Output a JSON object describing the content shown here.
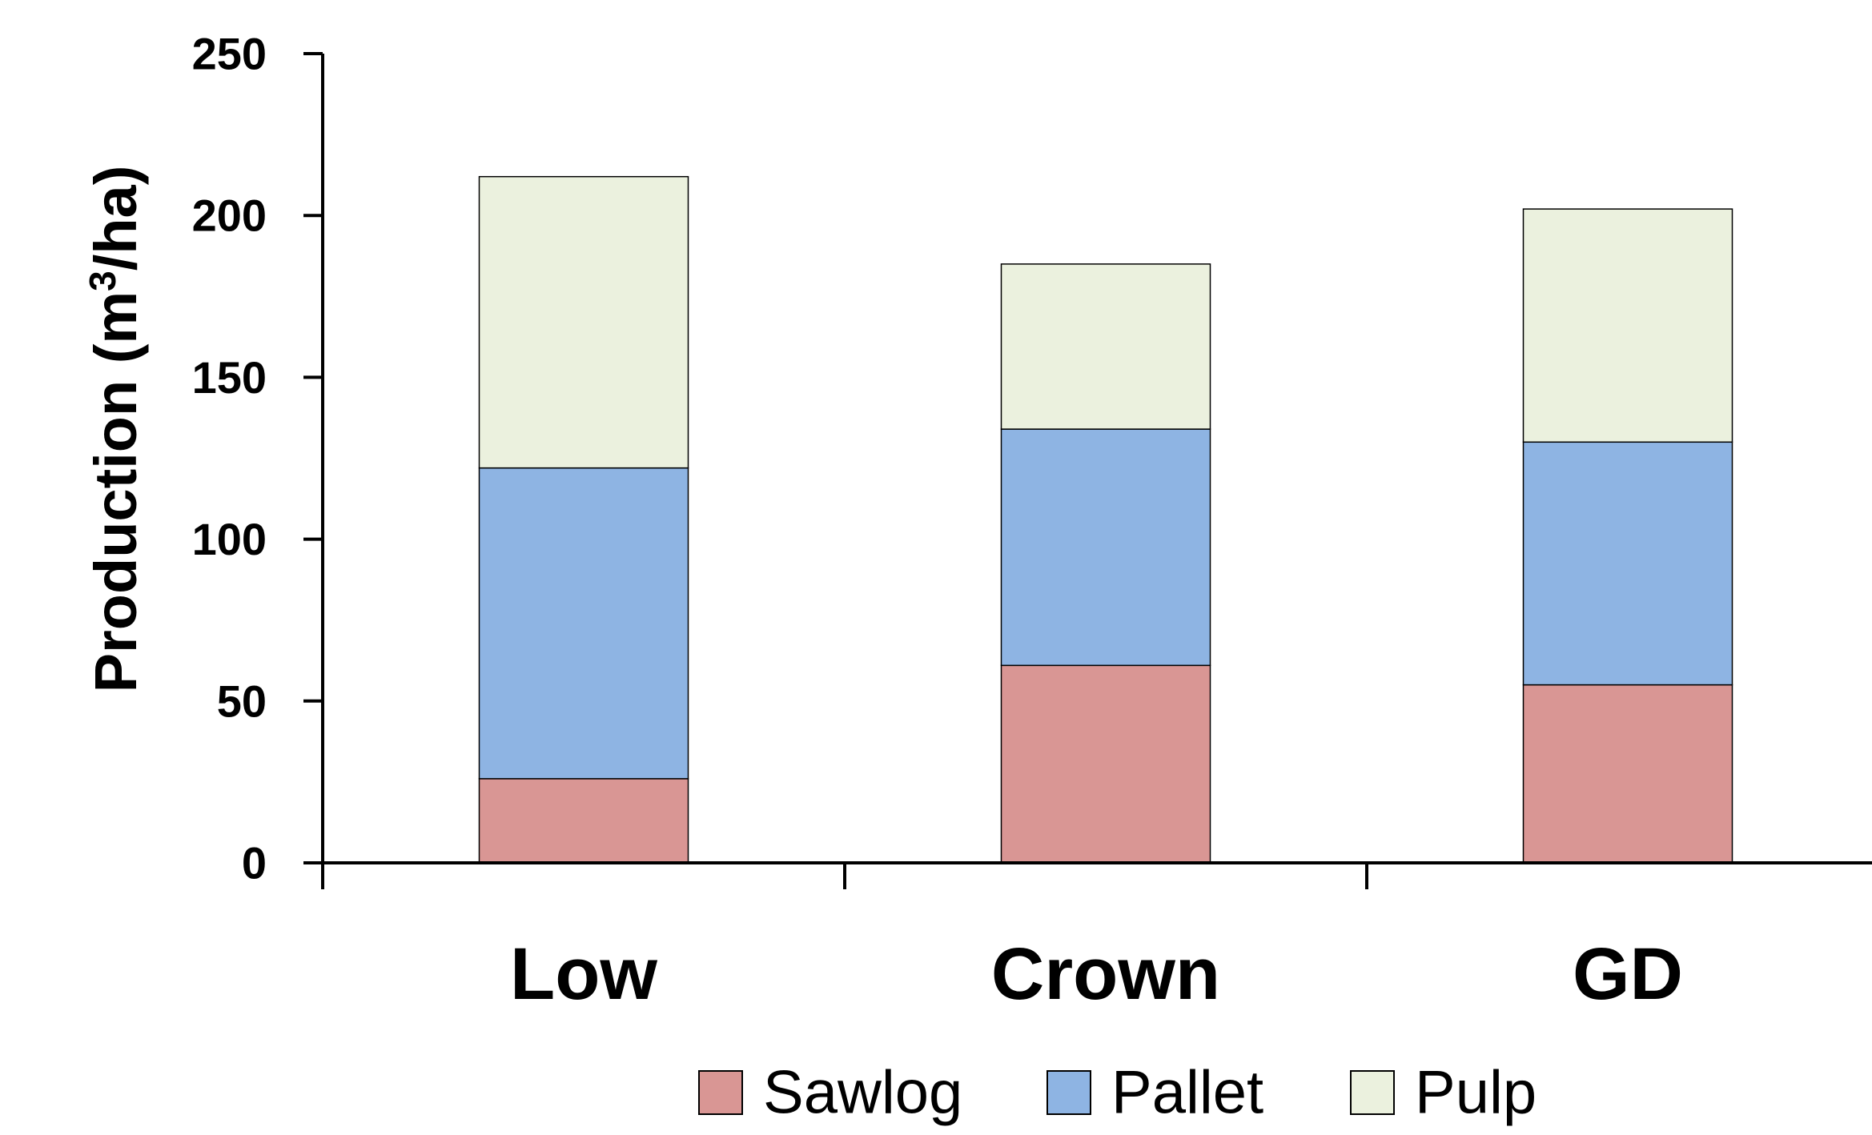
{
  "chart_data": {
    "type": "bar",
    "stacked": true,
    "categories": [
      "Low",
      "Crown",
      "GD"
    ],
    "series": [
      {
        "name": "Sawlog",
        "values": [
          26,
          61,
          55
        ],
        "color": "#d99694"
      },
      {
        "name": "Pallet",
        "values": [
          96,
          73,
          75
        ],
        "color": "#8eb4e3"
      },
      {
        "name": "Pulp",
        "values": [
          90,
          51,
          72
        ],
        "color": "#ebf1de"
      }
    ],
    "ylabel_main": "Production (m",
    "ylabel_superscript": "3",
    "ylabel_tail": "/ha)",
    "xlabel": "",
    "title": "",
    "ylim": [
      0,
      250
    ],
    "yticks": [
      "0",
      "50",
      "100",
      "150",
      "200",
      "250"
    ],
    "grid": false,
    "legend_position": "bottom"
  }
}
